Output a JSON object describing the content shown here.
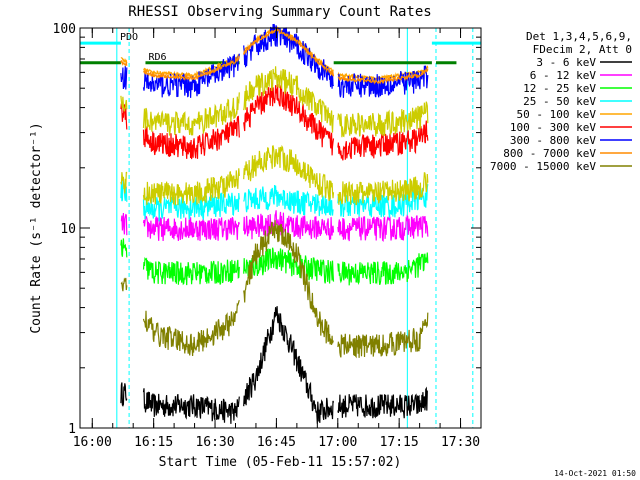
{
  "chart_data": {
    "type": "line",
    "title": "RHESSI Observing Summary Count Rates",
    "xlabel": "Start Time (05-Feb-11 15:57:02)",
    "ylabel": "Count Rate (s⁻¹ detector⁻¹)",
    "footer": "14-Oct-2021 01:50",
    "y_scale": "log",
    "ylim": [
      1,
      100
    ],
    "y_ticks": [
      {
        "v": 1,
        "label": "1"
      },
      {
        "v": 10,
        "label": "10"
      },
      {
        "v": 100,
        "label": "100"
      }
    ],
    "xlim": [
      "15:57",
      "17:35"
    ],
    "x_ticks": [
      {
        "t": "16:00",
        "label": "16:00"
      },
      {
        "t": "16:15",
        "label": "16:15"
      },
      {
        "t": "16:30",
        "label": "16:30"
      },
      {
        "t": "16:45",
        "label": "16:45"
      },
      {
        "t": "17:00",
        "label": "17:00"
      },
      {
        "t": "17:15",
        "label": "17:15"
      },
      {
        "t": "17:30",
        "label": "17:30"
      }
    ],
    "legend": {
      "placement": "right",
      "header": [
        "Det 1,3,4,5,6,9,",
        "FDecim 2, Att 0"
      ]
    },
    "flags": [
      {
        "label": "PDO",
        "color": "#00ffff",
        "level": 84,
        "segments": [
          [
            "15:57",
            "16:07"
          ],
          [
            "17:23",
            "17:35"
          ]
        ]
      },
      {
        "label": "RD6",
        "color": "#008000",
        "level": 67,
        "segments": [
          [
            "15:57",
            "16:07"
          ],
          [
            "16:13",
            "16:36"
          ],
          [
            "16:59",
            "17:23"
          ],
          [
            "17:24",
            "17:29"
          ]
        ]
      }
    ],
    "vlines": [
      {
        "t": "16:06",
        "color": "#00ffff",
        "style": "solid"
      },
      {
        "t": "16:09",
        "color": "#00ffff",
        "style": "dashed"
      },
      {
        "t": "17:17",
        "color": "#00ffff",
        "style": "solid"
      },
      {
        "t": "17:24",
        "color": "#00ffff",
        "style": "dashed"
      },
      {
        "t": "17:33",
        "color": "#00ffff",
        "style": "dashed"
      }
    ],
    "data_interval": [
      "16:07",
      "17:23"
    ],
    "gaps": [
      [
        "16:08.5",
        "16:12.5"
      ],
      [
        "16:36",
        "16:37"
      ],
      [
        "16:59",
        "17:00"
      ],
      [
        "17:22",
        "17:23"
      ]
    ],
    "series": [
      {
        "name": "3 - 6 keV",
        "color": "#000000",
        "style": "noisy",
        "times": [
          "16:07",
          "16:10",
          "16:15",
          "16:25",
          "16:35",
          "16:40",
          "16:45",
          "16:50",
          "16:55",
          "17:00",
          "17:10",
          "17:20",
          "17:23"
        ],
        "values": [
          1.5,
          1.5,
          1.3,
          1.3,
          1.2,
          1.8,
          3.8,
          2.2,
          1.2,
          1.3,
          1.3,
          1.3,
          1.5
        ]
      },
      {
        "name": "6 - 12 keV",
        "color": "#ff00ff",
        "style": "noisy",
        "times": [
          "16:07",
          "16:15",
          "16:30",
          "16:40",
          "16:45",
          "16:50",
          "17:00",
          "17:15",
          "17:23"
        ],
        "values": [
          10.5,
          10,
          10,
          10.2,
          10.8,
          10.2,
          10,
          10,
          10.5
        ]
      },
      {
        "name": "12 - 25 keV",
        "color": "#00ff00",
        "style": "noisy",
        "times": [
          "16:07",
          "16:10",
          "16:15",
          "16:30",
          "16:40",
          "16:45",
          "16:50",
          "17:00",
          "17:15",
          "17:23"
        ],
        "values": [
          8,
          7,
          6,
          6,
          6.5,
          7.2,
          6.5,
          6,
          6,
          7
        ]
      },
      {
        "name": "25 - 50 keV",
        "color": "#00ffff",
        "style": "noisy",
        "times": [
          "16:07",
          "16:10",
          "16:15",
          "16:30",
          "16:40",
          "16:45",
          "16:50",
          "17:00",
          "17:15",
          "17:23"
        ],
        "values": [
          16,
          13,
          12.5,
          13,
          14,
          14.5,
          13.5,
          13,
          13,
          15
        ]
      },
      {
        "name": "50 - 100 keV",
        "color": "#ffa500",
        "style": "smooth",
        "times": [
          "16:07",
          "16:10",
          "16:15",
          "16:25",
          "16:35",
          "16:40",
          "16:45",
          "16:50",
          "16:55",
          "17:00",
          "17:10",
          "17:20",
          "17:23"
        ],
        "values": [
          70,
          65,
          60,
          58,
          70,
          88,
          100,
          88,
          70,
          58,
          56,
          60,
          66
        ]
      },
      {
        "name": "100 - 300 keV",
        "color": "#ff0000",
        "style": "noisy",
        "times": [
          "16:07",
          "16:10",
          "16:15",
          "16:25",
          "16:35",
          "16:40",
          "16:45",
          "16:50",
          "16:55",
          "17:00",
          "17:10",
          "17:20",
          "17:23"
        ],
        "values": [
          40,
          32,
          27,
          25,
          31,
          40,
          48,
          40,
          31,
          25,
          26,
          28,
          33
        ]
      },
      {
        "name": "300 - 800 keV",
        "color": "#0000ff",
        "style": "noisy",
        "times": [
          "16:07",
          "16:10",
          "16:15",
          "16:25",
          "16:35",
          "16:40",
          "16:45",
          "16:50",
          "16:55",
          "17:00",
          "17:10",
          "17:20",
          "17:23"
        ],
        "values": [
          58,
          55,
          52,
          52,
          66,
          82,
          94,
          82,
          66,
          52,
          52,
          55,
          60
        ]
      },
      {
        "name": "800 - 7000 keV",
        "color": "#ff8c00",
        "style": "smooth",
        "times": [
          "16:07",
          "16:10",
          "16:15",
          "16:25",
          "16:35",
          "16:40",
          "16:45",
          "16:50",
          "16:55",
          "17:00",
          "17:10",
          "17:20",
          "17:23"
        ],
        "values": [
          68,
          63,
          58,
          56,
          68,
          86,
          98,
          86,
          68,
          56,
          54,
          58,
          64
        ]
      },
      {
        "name": "7000 - 15000 keV",
        "color": "#808000",
        "style": "noisy",
        "times": [
          "16:07",
          "16:10",
          "16:15",
          "16:25",
          "16:35",
          "16:40",
          "16:45",
          "16:50",
          "16:55",
          "17:00",
          "17:10",
          "17:20",
          "17:23"
        ],
        "values": [
          5.5,
          4.5,
          3,
          2.6,
          3.5,
          7.5,
          10,
          7.5,
          3.5,
          2.6,
          2.6,
          2.8,
          3.8
        ]
      },
      {
        "name": "7000 - 15000 keV (yellow)",
        "color": "#cccc00",
        "style": "noisy",
        "legend": false,
        "times": [
          "16:07",
          "16:10",
          "16:15",
          "16:25",
          "16:35",
          "16:40",
          "16:45",
          "16:50",
          "16:55",
          "17:00",
          "17:10",
          "17:20",
          "17:23"
        ],
        "values": [
          44,
          38,
          34,
          33,
          40,
          51,
          57,
          51,
          40,
          33,
          33,
          36,
          40
        ]
      },
      {
        "name": "15 - 25 keV (yellow)",
        "color": "#cccc00",
        "style": "noisy",
        "legend": false,
        "times": [
          "16:07",
          "16:10",
          "16:15",
          "16:25",
          "16:35",
          "16:40",
          "16:45",
          "16:50",
          "16:55",
          "17:00",
          "17:10",
          "17:20",
          "17:23"
        ],
        "values": [
          18,
          15.5,
          15,
          15,
          17,
          21,
          23.5,
          21,
          17,
          15,
          15,
          16,
          18
        ]
      }
    ]
  }
}
